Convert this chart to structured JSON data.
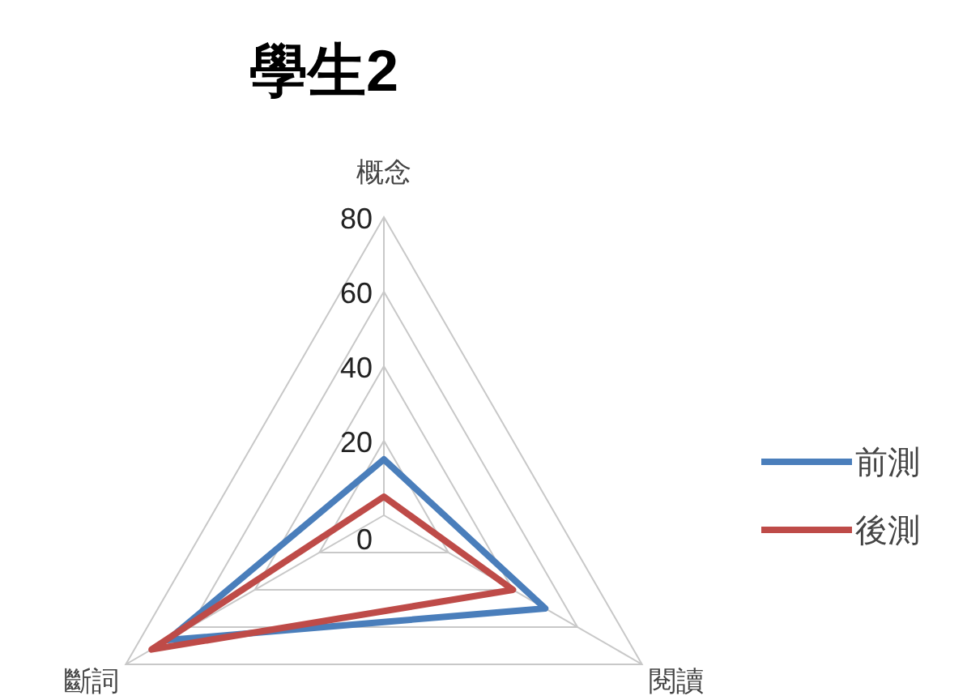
{
  "chart_data": {
    "type": "radar",
    "title": "學生2",
    "categories": [
      "概念",
      "閱讀",
      "斷詞"
    ],
    "series": [
      {
        "name": "前測",
        "color": "#4a7ebb",
        "values": [
          15,
          50,
          67
        ]
      },
      {
        "name": "後測",
        "color": "#be4b48",
        "values": [
          5,
          40,
          72
        ]
      }
    ],
    "ylim": [
      0,
      80
    ],
    "yticks": [
      0,
      20,
      40,
      60,
      80
    ],
    "grid": true,
    "legend": "right"
  }
}
